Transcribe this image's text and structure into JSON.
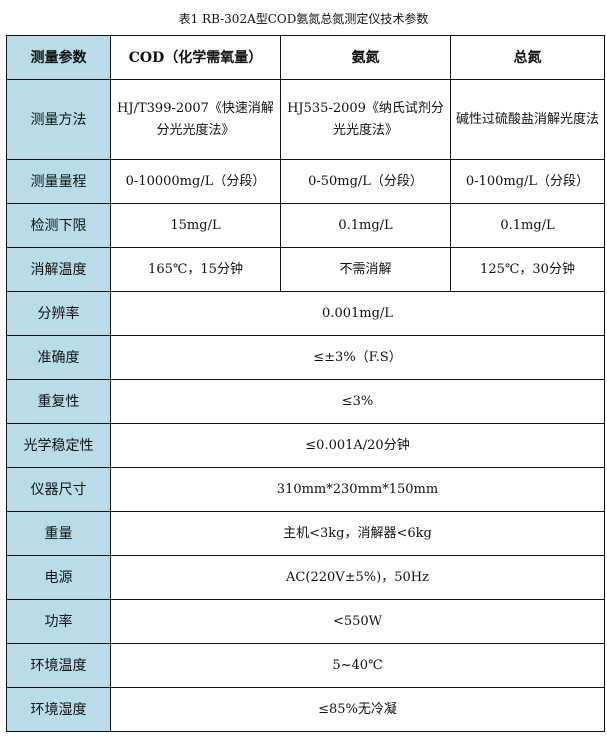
{
  "caption": "表1  RB-302A型COD氨氮总氮测定仪技术参数",
  "header": [
    "测量参数",
    "COD（化学需氧量）",
    "氨氮",
    "总氮"
  ],
  "rows3": [
    {
      "label": "测量方法",
      "cells": [
        "HJ/T399-2007《快速消解分光光度法》",
        "HJ535-2009《纳氏试剂分光光度法》",
        "碱性过硫酸盐消解光度法"
      ]
    },
    {
      "label": "测量量程",
      "cells": [
        "0-10000mg/L（分段）",
        "0-50mg/L（分段）",
        "0-100mg/L（分段）"
      ]
    },
    {
      "label": "检测下限",
      "cells": [
        "15mg/L",
        "0.1mg/L",
        "0.1mg/L"
      ]
    },
    {
      "label": "消解温度",
      "cells": [
        "165℃，15分钟",
        "不需消解",
        "125℃，30分钟"
      ]
    }
  ],
  "rows1": [
    {
      "label": "分辨率",
      "value": "0.001mg/L"
    },
    {
      "label": "准确度",
      "value": "≤±3%（F.S）"
    },
    {
      "label": "重复性",
      "value": "≤3%"
    },
    {
      "label": "光学稳定性",
      "value": "≤0.001A/20分钟"
    },
    {
      "label": "仪器尺寸",
      "value": "310mm*230mm*150mm"
    },
    {
      "label": "重量",
      "value": "主机<3kg，消解器<6kg"
    },
    {
      "label": "电源",
      "value": "AC(220V±5%)，50Hz"
    },
    {
      "label": "功率",
      "value": "<550W"
    },
    {
      "label": "环境温度",
      "value": "5~40℃"
    },
    {
      "label": "环境湿度",
      "value": "≤85%无冷凝"
    }
  ],
  "colors": {
    "label_bg": "#b8dde8",
    "border": "#111111"
  }
}
